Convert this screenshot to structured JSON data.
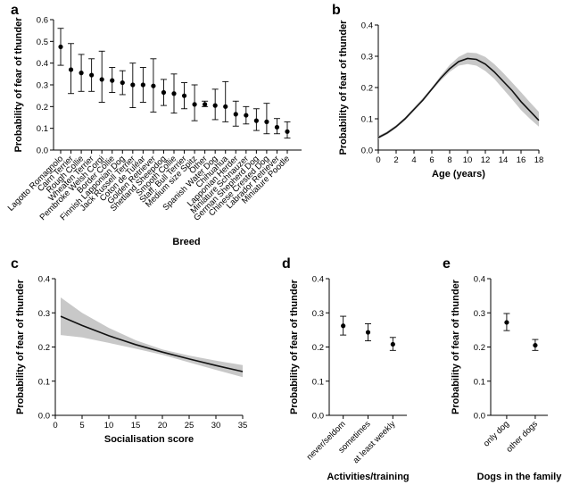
{
  "colors": {
    "ink": "#000000",
    "band": "#c8c8c8",
    "line": "#111111"
  },
  "chart_data": [
    {
      "panel": "a",
      "type": "scatter",
      "xlabel": "Breed",
      "ylabel": "Probability of fear of thunder",
      "ylim": [
        0,
        0.6
      ],
      "yticks": [
        "0.0",
        "0.1",
        "0.2",
        "0.3",
        "0.4",
        "0.5",
        "0.6"
      ],
      "grid": false,
      "error_bars": true,
      "categories": [
        "Lagotto Romagnolo",
        "Cairn Terrier",
        "Rough Collie",
        "Wheaten Terrier",
        "Pembroke Welsh Corgi",
        "Border Collie",
        "Finnish Lapponian Dog",
        "Jack Russell Terrier",
        "Coton de Tuléar",
        "Golden Retriever",
        "Shetland Sheepdog",
        "Smooth Collie",
        "Staff. Bull Terrier",
        "Medium size Spitz",
        "Other",
        "Spanish Water Dog",
        "Chihuahua",
        "Lapponian Herder",
        "Miniature Schnauzer",
        "German Shepherd Dog",
        "Chinese Crested Dog",
        "Labrador Retriever",
        "Miniature Poodle"
      ],
      "values": [
        0.475,
        0.37,
        0.355,
        0.345,
        0.325,
        0.32,
        0.31,
        0.3,
        0.3,
        0.295,
        0.265,
        0.26,
        0.25,
        0.21,
        0.21,
        0.205,
        0.2,
        0.165,
        0.16,
        0.135,
        0.13,
        0.105,
        0.085
      ],
      "lower": [
        0.39,
        0.26,
        0.27,
        0.27,
        0.22,
        0.265,
        0.255,
        0.195,
        0.22,
        0.175,
        0.205,
        0.17,
        0.19,
        0.135,
        0.2,
        0.14,
        0.13,
        0.11,
        0.12,
        0.09,
        0.075,
        0.075,
        0.055
      ],
      "upper": [
        0.56,
        0.49,
        0.44,
        0.42,
        0.455,
        0.38,
        0.365,
        0.4,
        0.38,
        0.42,
        0.325,
        0.35,
        0.31,
        0.3,
        0.225,
        0.28,
        0.315,
        0.225,
        0.2,
        0.19,
        0.215,
        0.145,
        0.13
      ]
    },
    {
      "panel": "b",
      "type": "line",
      "xlabel": "Age (years)",
      "ylabel": "Probability of fear of thunder",
      "xlim": [
        0,
        18
      ],
      "ylim": [
        0,
        0.4
      ],
      "xticks": [
        "0",
        "2",
        "4",
        "6",
        "8",
        "10",
        "12",
        "14",
        "16",
        "18"
      ],
      "yticks": [
        "0.0",
        "0.1",
        "0.2",
        "0.3",
        "0.4"
      ],
      "confidence_band": true,
      "x": [
        0,
        1,
        2,
        3,
        4,
        5,
        6,
        7,
        8,
        9,
        10,
        11,
        12,
        13,
        14,
        15,
        16,
        17,
        18
      ],
      "y": [
        0.04,
        0.055,
        0.075,
        0.1,
        0.13,
        0.16,
        0.195,
        0.23,
        0.26,
        0.283,
        0.293,
        0.29,
        0.275,
        0.25,
        0.22,
        0.19,
        0.155,
        0.125,
        0.095
      ],
      "lower": [
        0.035,
        0.05,
        0.07,
        0.095,
        0.125,
        0.155,
        0.19,
        0.222,
        0.25,
        0.27,
        0.275,
        0.27,
        0.253,
        0.228,
        0.195,
        0.162,
        0.128,
        0.1,
        0.075
      ],
      "upper": [
        0.045,
        0.06,
        0.08,
        0.105,
        0.136,
        0.167,
        0.2,
        0.238,
        0.272,
        0.298,
        0.312,
        0.31,
        0.298,
        0.275,
        0.247,
        0.216,
        0.185,
        0.153,
        0.122
      ]
    },
    {
      "panel": "c",
      "type": "line",
      "xlabel": "Socialisation score",
      "ylabel": "Probability of fear of thunder",
      "xlim": [
        0,
        35
      ],
      "ylim": [
        0,
        0.4
      ],
      "xticks": [
        "0",
        "5",
        "10",
        "15",
        "20",
        "25",
        "30",
        "35"
      ],
      "yticks": [
        "0.0",
        "0.1",
        "0.2",
        "0.3",
        "0.4"
      ],
      "confidence_band": true,
      "x": [
        1,
        5,
        10,
        15,
        20,
        25,
        30,
        35
      ],
      "y": [
        0.29,
        0.263,
        0.233,
        0.207,
        0.185,
        0.165,
        0.146,
        0.128
      ],
      "lower": [
        0.235,
        0.228,
        0.212,
        0.195,
        0.177,
        0.155,
        0.133,
        0.112
      ],
      "upper": [
        0.345,
        0.3,
        0.256,
        0.22,
        0.193,
        0.175,
        0.16,
        0.147
      ]
    },
    {
      "panel": "d",
      "type": "scatter",
      "xlabel": "Activities/training",
      "ylabel": "Probability of fear of thunder",
      "ylim": [
        0,
        0.4
      ],
      "yticks": [
        "0.0",
        "0.1",
        "0.2",
        "0.3",
        "0.4"
      ],
      "error_bars": true,
      "categories": [
        "never/seldom",
        "sometimes",
        "at least weekly"
      ],
      "values": [
        0.262,
        0.243,
        0.208
      ],
      "lower": [
        0.235,
        0.218,
        0.19
      ],
      "upper": [
        0.29,
        0.268,
        0.228
      ]
    },
    {
      "panel": "e",
      "type": "scatter",
      "xlabel": "Dogs in the family",
      "ylabel": "Probability of fear of thunder",
      "ylim": [
        0,
        0.4
      ],
      "yticks": [
        "0.0",
        "0.1",
        "0.2",
        "0.3",
        "0.4"
      ],
      "error_bars": true,
      "categories": [
        "only dog",
        "other dogs"
      ],
      "values": [
        0.272,
        0.205
      ],
      "lower": [
        0.248,
        0.19
      ],
      "upper": [
        0.298,
        0.222
      ]
    }
  ]
}
